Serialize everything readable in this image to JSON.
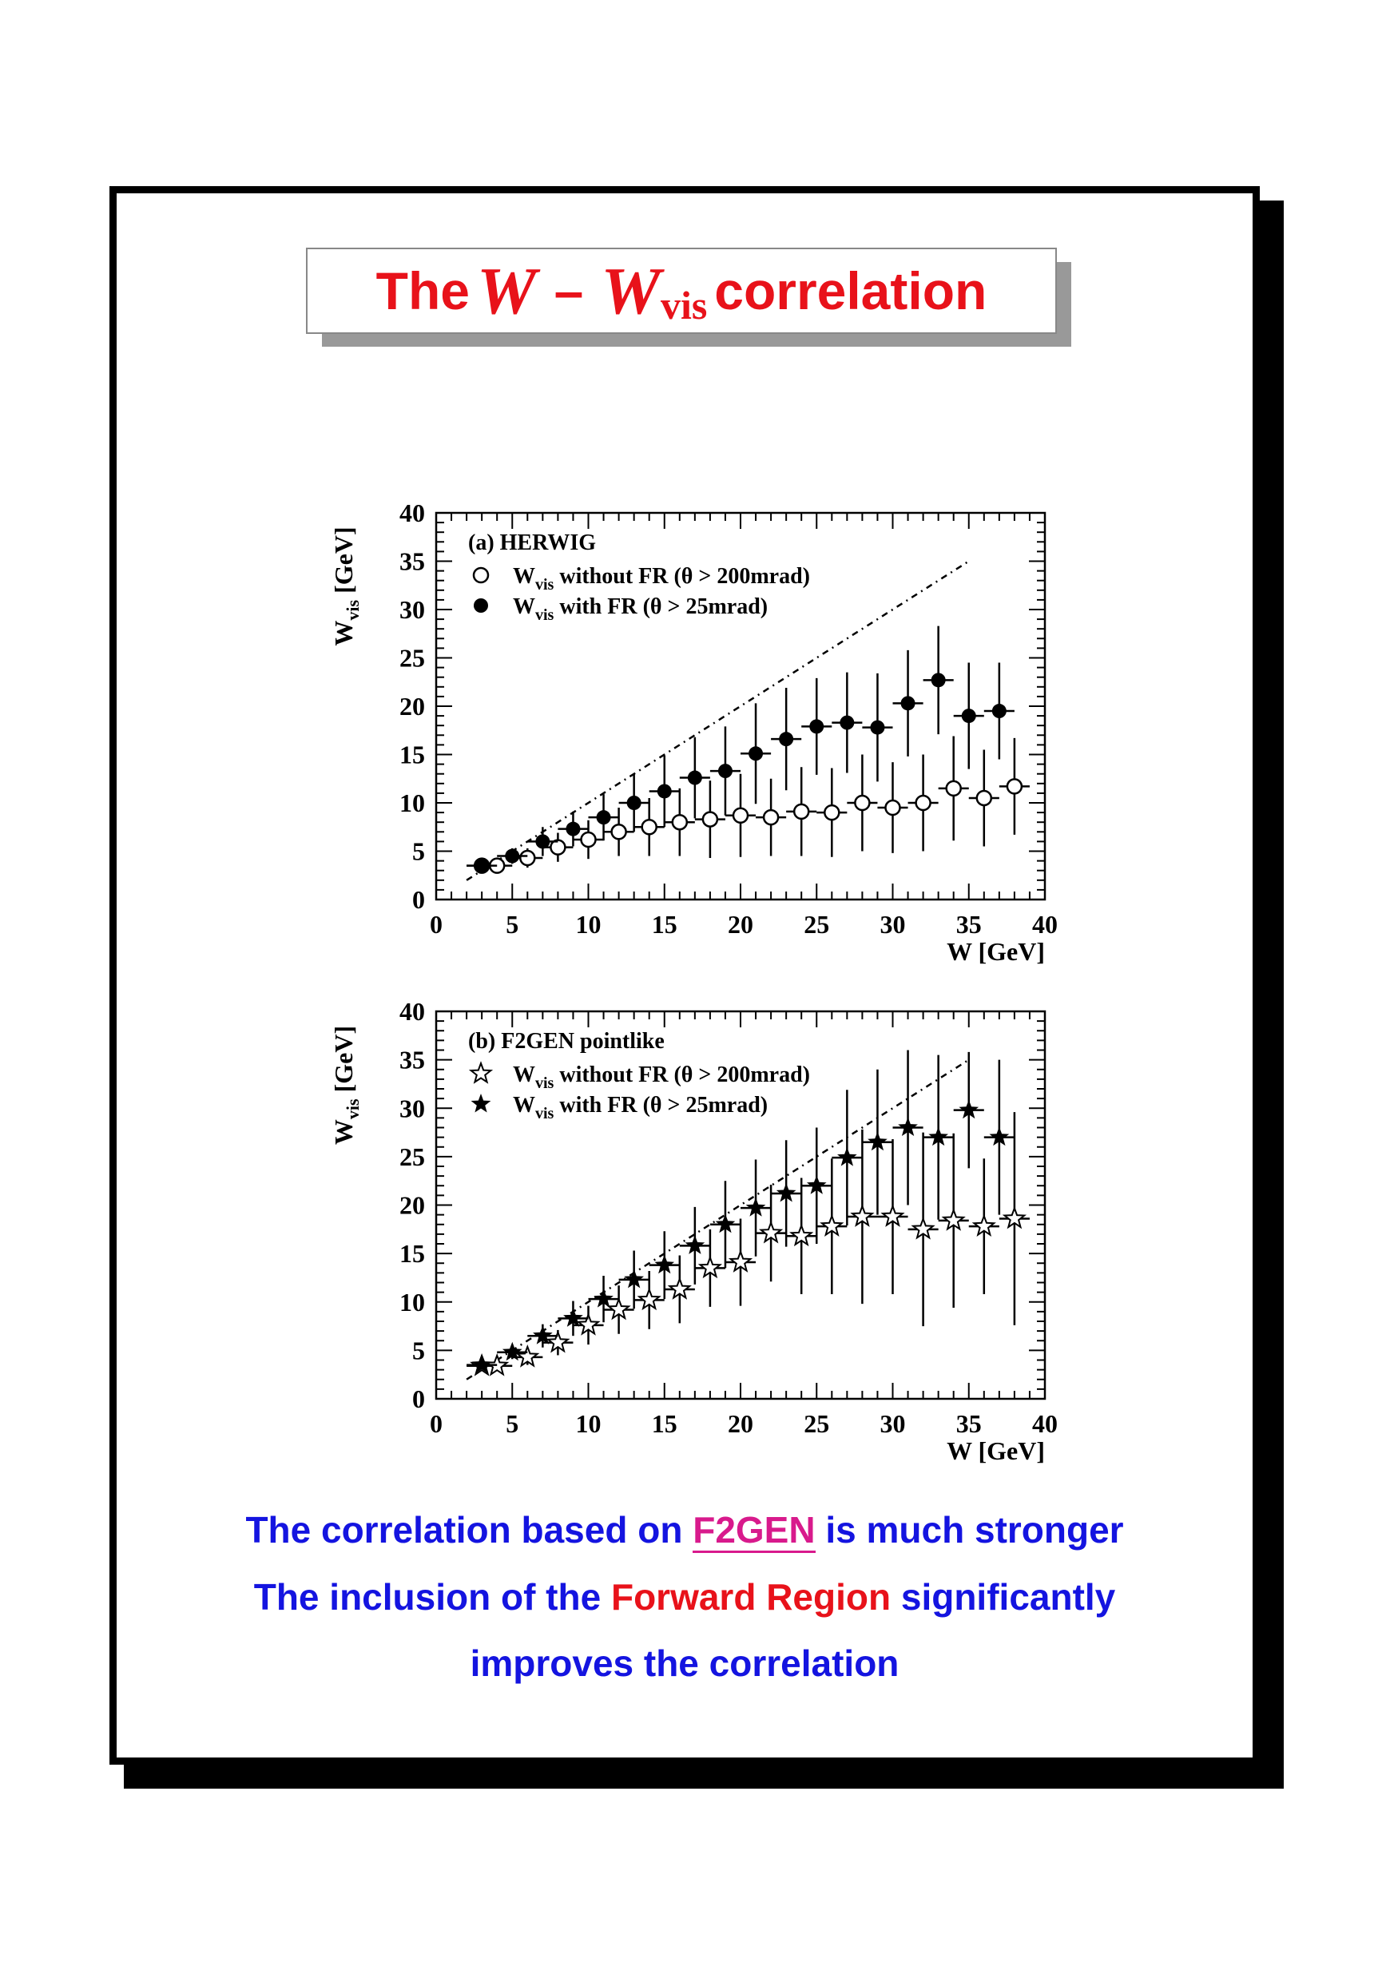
{
  "title": {
    "part1": "The",
    "sym_w": "W",
    "dash": "–",
    "sym_wvis": "W",
    "sub": "vis",
    "part2": "correlation"
  },
  "chart_data": [
    {
      "type": "scatter",
      "label": "(a)  HERWIG",
      "xlabel": "W  [GeV]",
      "ylabel": "W",
      "ylabel_sub": "vis",
      "ylabel_unit": "[GeV]",
      "xlim": [
        0,
        40
      ],
      "ylim": [
        0,
        40
      ],
      "xticks": [
        "0",
        "5",
        "10",
        "15",
        "20",
        "25",
        "30",
        "35",
        "40"
      ],
      "yticks": [
        "0",
        "5",
        "10",
        "15",
        "20",
        "25",
        "30",
        "35",
        "40"
      ],
      "diagonal": [
        [
          2,
          2
        ],
        [
          35,
          35
        ]
      ],
      "series": [
        {
          "name": "W",
          "name_sub": "vis",
          "name_rest": " without FR (θ > 200mrad)",
          "marker": "open-circle",
          "x": [
            3,
            4,
            6,
            8,
            10,
            12,
            14,
            16,
            18,
            20,
            22,
            24,
            26,
            28,
            30,
            32,
            34,
            36,
            38
          ],
          "y": [
            3.5,
            3.5,
            4.3,
            5.4,
            6.2,
            7.0,
            7.5,
            8.0,
            8.3,
            8.7,
            8.5,
            9.1,
            9.0,
            10.0,
            9.5,
            10.0,
            11.5,
            10.5,
            11.7
          ],
          "yerr": [
            0.5,
            0.6,
            1.0,
            1.5,
            2.0,
            2.5,
            3.0,
            3.5,
            4.0,
            4.3,
            4.0,
            4.6,
            4.6,
            5.0,
            4.7,
            5.0,
            5.4,
            5.0,
            5.0
          ]
        },
        {
          "name": "W",
          "name_sub": "vis",
          "name_rest": " with FR (θ > 25mrad)",
          "marker": "filled-circle",
          "x": [
            3,
            5,
            7,
            9,
            11,
            13,
            15,
            17,
            19,
            21,
            23,
            25,
            27,
            29,
            31,
            33,
            35,
            37
          ],
          "y": [
            3.5,
            4.5,
            6.0,
            7.3,
            8.5,
            10.0,
            11.2,
            12.6,
            13.3,
            15.1,
            16.6,
            17.9,
            18.3,
            17.8,
            20.3,
            22.7,
            19.0,
            19.5
          ],
          "yerr": [
            0.5,
            0.8,
            1.5,
            1.8,
            2.4,
            3.0,
            3.7,
            4.2,
            4.6,
            5.2,
            5.3,
            5.0,
            5.2,
            5.6,
            5.5,
            5.6,
            5.5,
            5.0
          ]
        }
      ]
    },
    {
      "type": "scatter",
      "label": "(b)  F2GEN pointlike",
      "xlabel": "W  [GeV]",
      "ylabel": "W",
      "ylabel_sub": "vis",
      "ylabel_unit": "[GeV]",
      "xlim": [
        0,
        40
      ],
      "ylim": [
        0,
        40
      ],
      "xticks": [
        "0",
        "5",
        "10",
        "15",
        "20",
        "25",
        "30",
        "35",
        "40"
      ],
      "yticks": [
        "0",
        "5",
        "10",
        "15",
        "20",
        "25",
        "30",
        "35",
        "40"
      ],
      "diagonal": [
        [
          2,
          2
        ],
        [
          35,
          35
        ]
      ],
      "series": [
        {
          "name": "W",
          "name_sub": "vis",
          "name_rest": " without FR (θ > 200mrad)",
          "marker": "open-star",
          "x": [
            3,
            4,
            6,
            8,
            10,
            12,
            14,
            16,
            18,
            20,
            22,
            24,
            26,
            28,
            30,
            32,
            34,
            36,
            38
          ],
          "y": [
            3.4,
            3.4,
            4.3,
            5.8,
            7.6,
            9.2,
            10.2,
            11.3,
            13.5,
            14.1,
            17.1,
            16.8,
            17.8,
            18.8,
            18.8,
            17.5,
            18.4,
            17.8,
            18.6
          ],
          "yerr": [
            0.4,
            0.5,
            0.8,
            1.3,
            2.0,
            2.5,
            3.0,
            3.5,
            4.0,
            4.5,
            5.0,
            6.0,
            7.0,
            9.0,
            8.0,
            10.0,
            9.0,
            7.0,
            11.0
          ]
        },
        {
          "name": "W",
          "name_sub": "vis",
          "name_rest": " with FR (θ > 25mrad)",
          "marker": "filled-star",
          "x": [
            3,
            5,
            7,
            9,
            11,
            13,
            15,
            17,
            19,
            21,
            23,
            25,
            27,
            29,
            31,
            33,
            35,
            37
          ],
          "y": [
            3.5,
            4.8,
            6.5,
            8.3,
            10.3,
            12.3,
            13.8,
            15.8,
            18.0,
            19.7,
            21.2,
            22.0,
            24.9,
            26.5,
            28.0,
            27.0,
            29.8,
            27.0
          ],
          "yerr": [
            0.4,
            0.7,
            1.2,
            1.8,
            2.4,
            3.0,
            3.5,
            4.0,
            4.5,
            5.0,
            5.5,
            6.0,
            7.0,
            7.5,
            8.0,
            8.5,
            6.0,
            8.0
          ]
        }
      ]
    }
  ],
  "conclusions": {
    "line1_a": "The correlation based on ",
    "line1_link": "F2GEN",
    "line1_b": " is much stronger",
    "line2_a": "The inclusion of the ",
    "line2_red": "Forward Region",
    "line2_b": " significantly",
    "line3": "improves the correlation"
  }
}
